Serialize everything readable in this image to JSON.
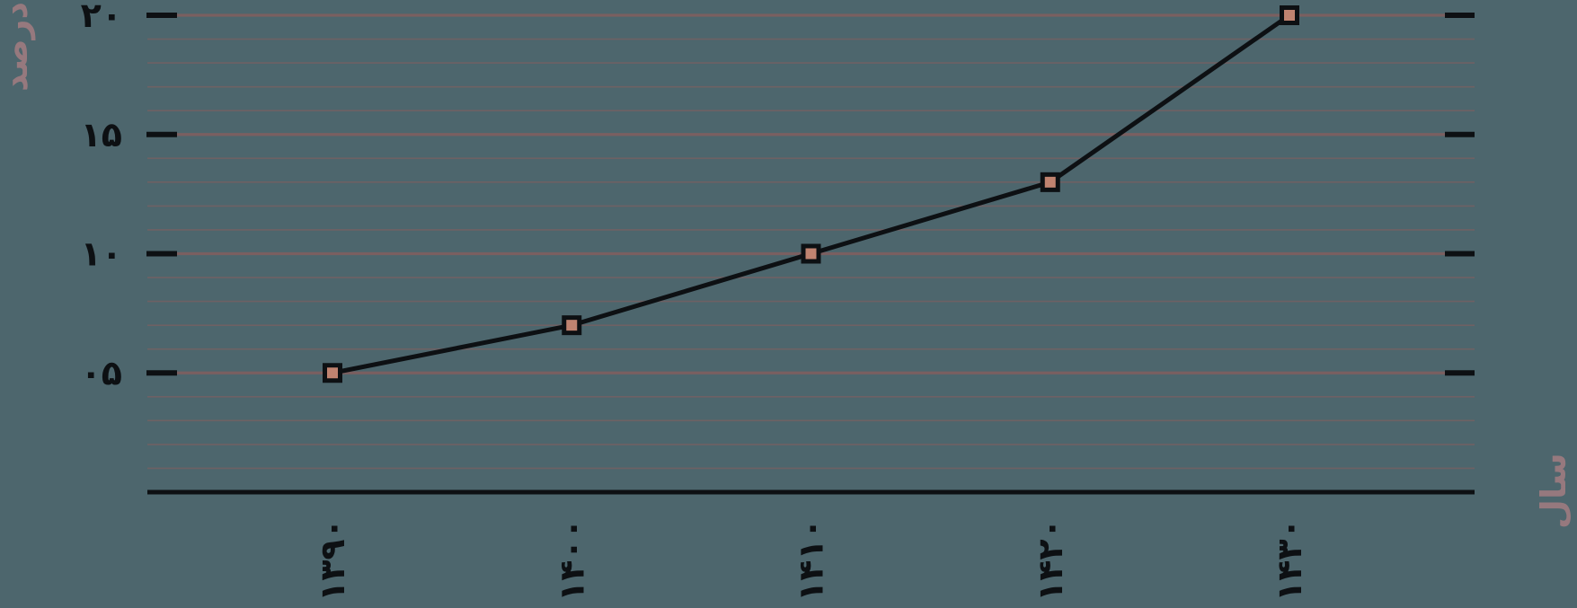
{
  "chart_data": {
    "type": "line",
    "title": "",
    "xlabel": "سال",
    "ylabel": "درصد",
    "x": [
      1390,
      1400,
      1410,
      1420,
      1430
    ],
    "x_tick_labels": [
      "۱۳۹۰",
      "۱۴۰۰",
      "۱۴۱۰",
      "۱۴۲۰",
      "۱۴۳۰"
    ],
    "values": [
      5,
      7,
      10,
      13,
      20
    ],
    "y_ticks": [
      {
        "value": 20,
        "label": "۲۰"
      },
      {
        "value": 15,
        "label": "۱۵"
      },
      {
        "value": 10,
        "label": "۱۰"
      },
      {
        "value": 5,
        "label": "۰۵"
      }
    ],
    "ylim": [
      0,
      20
    ],
    "grid": {
      "direction": "horizontal",
      "minor_step": 1,
      "major_step": 5,
      "min": 1,
      "max": 20
    },
    "legend_position": "none",
    "marker": "square",
    "style": {
      "background": "#4d666d",
      "line_color": "#0d1013",
      "marker_fill": "#c08370",
      "marker_border": "#0d1013",
      "grid_minor_color": "#6e6164",
      "grid_major_color": "#7a5f60",
      "tick_mark_color": "#0d1013",
      "axis_color": "#0d1013",
      "axis_title_color": "#96797e",
      "tick_label_color": "#0d1013"
    }
  }
}
